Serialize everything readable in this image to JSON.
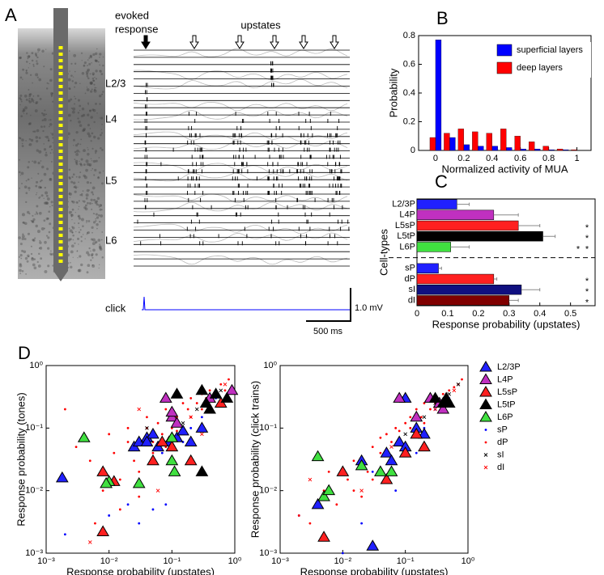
{
  "panel_a": {
    "panel": "A",
    "evoked": [
      "evoked",
      "response"
    ],
    "upstates": "upstates",
    "layers": [
      "L2/3",
      "L4",
      "L5",
      "L6"
    ],
    "click": "click",
    "scale_v": "1.0 mV",
    "scale_t": "500 ms"
  },
  "chart_data": [
    {
      "type": "bar",
      "panel": "B",
      "x": [
        0,
        0.1,
        0.2,
        0.3,
        0.4,
        0.5,
        0.6,
        0.7,
        0.8,
        0.9,
        1
      ],
      "series": [
        {
          "name": "superficial layers",
          "color": "#0000ff",
          "values": [
            0.77,
            0.09,
            0.04,
            0.03,
            0.03,
            0.02,
            0.01,
            0.01,
            0.005,
            0.005,
            0
          ]
        },
        {
          "name": "deep layers",
          "color": "#ff0000",
          "values": [
            0.09,
            0.12,
            0.15,
            0.13,
            0.12,
            0.15,
            0.1,
            0.06,
            0.03,
            0.01,
            0.005
          ]
        }
      ],
      "xlim": [
        -0.12,
        1.1
      ],
      "xticks": [
        0,
        0.2,
        0.4,
        0.6,
        0.8,
        1
      ],
      "ylim": [
        0,
        0.8
      ],
      "yticks": [
        0,
        0.2,
        0.4,
        0.6,
        0.8
      ],
      "xlabel": "Normalized activity of MUA",
      "ylabel": "Probability",
      "legend": "upper right"
    },
    {
      "type": "hbar",
      "panel": "C",
      "categories": [
        "L2/3P",
        "L4P",
        "L5sP",
        "L5tP",
        "L6P",
        null,
        "sP",
        "dP",
        "sI",
        "dI"
      ],
      "values": [
        0.13,
        0.25,
        0.33,
        0.41,
        0.11,
        null,
        0.07,
        0.25,
        0.34,
        0.3
      ],
      "errors": [
        0.04,
        0.08,
        0.07,
        0.04,
        0.06,
        null,
        0.01,
        0.01,
        0.06,
        0.03
      ],
      "colors": [
        "#2020ff",
        "#c030c0",
        "#ff2020",
        "#000000",
        "#40e040",
        null,
        "#2020ff",
        "#ff2020",
        "#101080",
        "#800000"
      ],
      "xlim": [
        0,
        0.58
      ],
      "xticks": [
        0,
        0.1,
        0.2,
        0.3,
        0.4,
        0.5
      ],
      "xlabel": "Response probability (upstates)",
      "ylabel": "Cell-types",
      "annotations": [
        {
          "category": "L5sP",
          "text": "*",
          "color": "#2222cc"
        },
        {
          "category": "L5tP",
          "text": "*",
          "color": "#2222cc"
        },
        {
          "category": "L6P",
          "text": "*",
          "color": "#000000"
        },
        {
          "category": "L6P",
          "text": "*",
          "color": "#ff2020"
        },
        {
          "category": "dP",
          "text": "*",
          "color": "#2222cc"
        },
        {
          "category": "sI",
          "text": "*",
          "color": "#2222cc"
        },
        {
          "category": "dI",
          "text": "*",
          "color": "#2222cc"
        }
      ]
    },
    {
      "type": "scatter",
      "panel": "D",
      "log": true,
      "xlim": [
        0.001,
        1
      ],
      "ylim": [
        0.001,
        1
      ],
      "xticks": [
        {
          "value": 0.001,
          "label": "10⁻³"
        },
        {
          "value": 0.01,
          "label": "10⁻²"
        },
        {
          "value": 0.1,
          "label": "10⁻¹"
        },
        {
          "value": 1,
          "label": "10⁰"
        }
      ],
      "yticks": [
        {
          "value": 0.001,
          "label": "10⁻³"
        },
        {
          "value": 0.01,
          "label": "10⁻²"
        },
        {
          "value": 0.1,
          "label": "10⁻¹"
        },
        {
          "value": 1,
          "label": "10⁰"
        }
      ],
      "xlabel": "Response probability (upstates)",
      "ylabel": "Response probability (tones)",
      "series": [
        {
          "color": "#ff0000",
          "marker": "dot",
          "x": [
            0.002,
            0.003,
            0.005,
            0.008,
            0.01,
            0.012,
            0.015,
            0.02,
            0.025,
            0.03,
            0.04,
            0.05,
            0.06,
            0.07,
            0.08,
            0.1,
            0.12,
            0.15,
            0.18,
            0.2,
            0.25,
            0.3,
            0.35,
            0.4,
            0.5,
            0.6,
            0.7,
            0.8,
            0.015,
            0.03,
            0.05,
            0.08,
            0.12,
            0.2,
            0.3,
            0.45,
            0.006,
            0.02,
            0.04,
            0.09
          ],
          "values": [
            0.2,
            0.05,
            0.03,
            0.01,
            0.08,
            0.04,
            0.005,
            0.1,
            0.03,
            0.02,
            0.15,
            0.06,
            0.12,
            0.08,
            0.2,
            0.1,
            0.15,
            0.25,
            0.2,
            0.3,
            0.25,
            0.35,
            0.3,
            0.4,
            0.35,
            0.5,
            0.4,
            0.6,
            0.015,
            0.008,
            0.04,
            0.05,
            0.09,
            0.15,
            0.2,
            0.3,
            0.003,
            0.06,
            0.1,
            0.07
          ]
        },
        {
          "color": "#0000ff",
          "marker": "dot",
          "x": [
            0.002,
            0.01,
            0.02,
            0.03,
            0.05,
            0.07,
            0.1,
            0.15,
            0.2,
            0.3,
            0.5,
            0.08
          ],
          "values": [
            0.002,
            0.004,
            0.006,
            0.003,
            0.005,
            0.04,
            0.03,
            0.06,
            0.1,
            0.15,
            0.3,
            0.006
          ]
        },
        {
          "color": "#000000",
          "marker": "x",
          "x": [
            0.04,
            0.08,
            0.15,
            0.25,
            0.4,
            0.6
          ],
          "values": [
            0.1,
            0.06,
            0.12,
            0.2,
            0.3,
            0.4
          ]
        },
        {
          "color": "#ff0000",
          "marker": "x",
          "x": [
            0.005,
            0.03,
            0.06,
            0.1,
            0.2,
            0.3,
            0.5,
            0.7
          ],
          "values": [
            0.0015,
            0.2,
            0.01,
            0.05,
            0.15,
            0.08,
            0.35,
            0.5
          ]
        },
        {
          "color": "#2020ff",
          "marker": "triangle",
          "x": [
            0.0018,
            0.025,
            0.03,
            0.04,
            0.05,
            0.06,
            0.09,
            0.12,
            0.15,
            0.2,
            0.3,
            0.04
          ],
          "values": [
            0.016,
            0.05,
            0.06,
            0.07,
            0.08,
            0.05,
            0.06,
            0.07,
            0.09,
            0.06,
            0.1,
            0.06
          ]
        },
        {
          "color": "#c030c0",
          "marker": "triangle",
          "x": [
            0.08,
            0.1,
            0.12,
            0.1,
            0.4,
            0.9
          ],
          "values": [
            0.3,
            0.15,
            0.12,
            0.18,
            0.3,
            0.4
          ]
        },
        {
          "color": "#ff2020",
          "marker": "triangle",
          "x": [
            0.05,
            0.008,
            0.012,
            0.07,
            0.1,
            0.008,
            0.2,
            0.6
          ],
          "values": [
            0.03,
            0.02,
            0.014,
            0.06,
            0.05,
            0.0022,
            0.03,
            0.25
          ]
        },
        {
          "color": "#000000",
          "marker": "triangle",
          "x": [
            0.12,
            0.3,
            0.35,
            0.4,
            0.5,
            0.3,
            0.75
          ],
          "values": [
            0.35,
            0.4,
            0.25,
            0.2,
            0.35,
            0.02,
            0.3
          ]
        },
        {
          "color": "#40e040",
          "marker": "triangle",
          "x": [
            0.004,
            0.01,
            0.03,
            0.1,
            0.1,
            0.11,
            0.009
          ],
          "values": [
            0.07,
            0.014,
            0.013,
            0.07,
            0.03,
            0.02,
            0.013
          ]
        }
      ]
    },
    {
      "type": "scatter",
      "log": true,
      "xlim": [
        0.001,
        1
      ],
      "ylim": [
        0.001,
        1
      ],
      "xticks": [
        {
          "value": 0.001,
          "label": "10⁻³"
        },
        {
          "value": 0.01,
          "label": "10⁻²"
        },
        {
          "value": 0.1,
          "label": "10⁻¹"
        },
        {
          "value": 1,
          "label": "10⁰"
        }
      ],
      "yticks": [
        {
          "value": 0.001,
          "label": "10⁻³"
        },
        {
          "value": 0.01,
          "label": "10⁻²"
        },
        {
          "value": 0.1,
          "label": "10⁻¹"
        },
        {
          "value": 1,
          "label": "10⁰"
        }
      ],
      "xlabel": "Response probability (upstates)",
      "ylabel": "Response probability (click trains)",
      "legend": "right",
      "series": [
        {
          "name": "L2/3P",
          "color": "#2020ff",
          "marker": "triangle",
          "x": [
            0.004,
            0.03,
            0.02,
            0.05,
            0.08,
            0.1,
            0.1,
            0.15,
            0.2,
            0.06
          ],
          "values": [
            0.006,
            0.0013,
            0.03,
            0.04,
            0.06,
            0.05,
            0.3,
            0.1,
            0.08,
            0.03
          ]
        },
        {
          "name": "L4P",
          "color": "#c030c0",
          "marker": "triangle",
          "x": [
            0.08,
            0.15,
            0.25,
            0.35,
            0.4
          ],
          "values": [
            0.3,
            0.15,
            0.3,
            0.25,
            0.2
          ]
        },
        {
          "name": "L5sP",
          "color": "#ff2020",
          "marker": "triangle",
          "x": [
            0.005,
            0.01,
            0.05,
            0.15,
            0.2,
            0.1
          ],
          "values": [
            0.0018,
            0.02,
            0.015,
            0.08,
            0.05,
            0.04
          ]
        },
        {
          "name": "L5tP",
          "color": "#000000",
          "marker": "triangle",
          "x": [
            0.3,
            0.4,
            0.45,
            0.5
          ],
          "values": [
            0.3,
            0.25,
            0.3,
            0.25
          ]
        },
        {
          "name": "L6P",
          "color": "#40e040",
          "marker": "triangle",
          "x": [
            0.004,
            0.005,
            0.006,
            0.02,
            0.04,
            0.06
          ],
          "values": [
            0.035,
            0.008,
            0.01,
            0.025,
            0.02,
            0.02
          ]
        },
        {
          "name": "sP",
          "color": "#0000ff",
          "marker": "dot",
          "x": [
            0.002,
            0.005,
            0.01,
            0.02,
            0.03,
            0.05,
            0.07,
            0.1,
            0.15,
            0.2,
            0.3,
            0.5
          ],
          "values": [
            0.004,
            0.002,
            0.001,
            0.003,
            0.02,
            0.015,
            0.01,
            0.05,
            0.04,
            0.1,
            0.2,
            0.3
          ]
        },
        {
          "name": "dP",
          "color": "#ff0000",
          "marker": "dot",
          "x": [
            0.002,
            0.003,
            0.005,
            0.008,
            0.01,
            0.012,
            0.015,
            0.02,
            0.025,
            0.03,
            0.04,
            0.05,
            0.06,
            0.07,
            0.08,
            0.1,
            0.12,
            0.15,
            0.18,
            0.2,
            0.25,
            0.3,
            0.35,
            0.4,
            0.5,
            0.6,
            0.7,
            0.8,
            0.015,
            0.03,
            0.05,
            0.08,
            0.12,
            0.2,
            0.3,
            0.45,
            0.006,
            0.02,
            0.04,
            0.09
          ],
          "values": [
            0.004,
            0.003,
            0.01,
            0.006,
            0.02,
            0.015,
            0.01,
            0.03,
            0.02,
            0.05,
            0.04,
            0.08,
            0.06,
            0.1,
            0.09,
            0.12,
            0.1,
            0.2,
            0.15,
            0.25,
            0.2,
            0.3,
            0.25,
            0.35,
            0.4,
            0.45,
            0.5,
            0.6,
            0.03,
            0.015,
            0.04,
            0.06,
            0.15,
            0.12,
            0.25,
            0.35,
            0.02,
            0.008,
            0.07,
            0.05
          ]
        },
        {
          "name": "sI",
          "color": "#000000",
          "marker": "x",
          "x": [
            0.05,
            0.1,
            0.2,
            0.3,
            0.5,
            0.7
          ],
          "values": [
            0.04,
            0.08,
            0.15,
            0.25,
            0.35,
            0.5
          ]
        },
        {
          "name": "dI",
          "color": "#ff0000",
          "marker": "x",
          "x": [
            0.003,
            0.02,
            0.06,
            0.15,
            0.3,
            0.6
          ],
          "values": [
            0.015,
            0.01,
            0.05,
            0.1,
            0.2,
            0.4
          ]
        }
      ]
    }
  ]
}
